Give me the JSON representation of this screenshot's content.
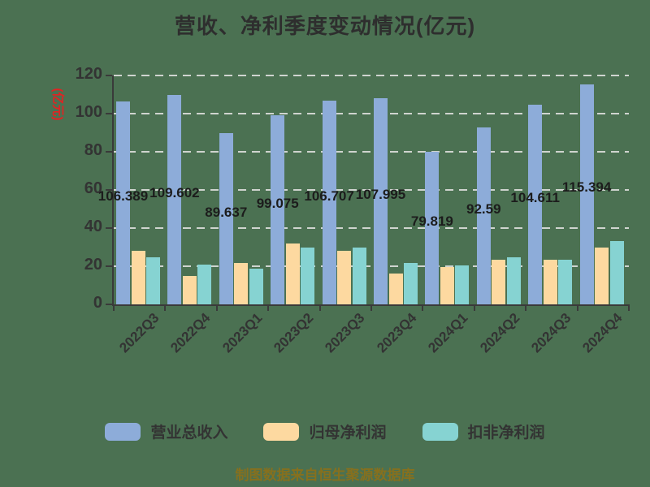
{
  "title": "营收、净利季度变动情况(亿元)",
  "y_axis_label": "(亿元)",
  "footer": "制图数据来自恒生聚源数据库",
  "colors": {
    "background": "#4b7152",
    "revenue_bar": "#8dacd9",
    "net_profit_bar": "#fdd9a0",
    "non_gaap_bar": "#86d3d2",
    "axis": "#3a3a3a",
    "gridline": "#cfd4cf",
    "title_text": "#2e2e2e",
    "y_axis_label_text": "#e32222",
    "footer_text": "#86701e",
    "tick_text": "#333333",
    "bar_label_text": "#1c1c1c"
  },
  "legend": [
    {
      "label": "营业总收入",
      "color": "#8dacd9"
    },
    {
      "label": "归母净利润",
      "color": "#fdd9a0"
    },
    {
      "label": "扣非净利润",
      "color": "#86d3d2"
    }
  ],
  "chart_data": {
    "type": "bar",
    "title": "营收、净利季度变动情况(亿元)",
    "ylabel": "(亿元)",
    "xlabel": "",
    "ylim": [
      0,
      120
    ],
    "yticks": [
      0,
      20,
      40,
      60,
      80,
      100,
      120
    ],
    "grid": "horizontal dashed",
    "legend_position": "bottom",
    "x_tick_rotation_deg": 45,
    "categories": [
      "2022Q3",
      "2022Q4",
      "2023Q1",
      "2023Q2",
      "2023Q3",
      "2023Q4",
      "2024Q1",
      "2024Q2",
      "2024Q3",
      "2024Q4"
    ],
    "series": [
      {
        "name": "营业总收入",
        "color": "#8dacd9",
        "values": [
          106.389,
          109.602,
          89.637,
          99.075,
          106.707,
          107.995,
          79.819,
          92.59,
          104.611,
          115.394
        ],
        "data_labels": [
          "106.389",
          "109.602",
          "89.637",
          "99.075",
          "106.707",
          "107.995",
          "79.819",
          "92.59",
          "104.611",
          "115.394"
        ]
      },
      {
        "name": "归母净利润",
        "color": "#fdd9a0",
        "values": [
          28.0,
          14.7,
          21.7,
          32.0,
          27.9,
          16.3,
          19.6,
          23.5,
          23.5,
          30.0
        ],
        "values_estimated_from_pixels": true
      },
      {
        "name": "扣非净利润",
        "color": "#86d3d2",
        "values": [
          24.7,
          21.0,
          18.7,
          30.0,
          29.8,
          21.6,
          20.4,
          24.5,
          23.3,
          33.0
        ],
        "values_estimated_from_pixels": true
      }
    ]
  }
}
